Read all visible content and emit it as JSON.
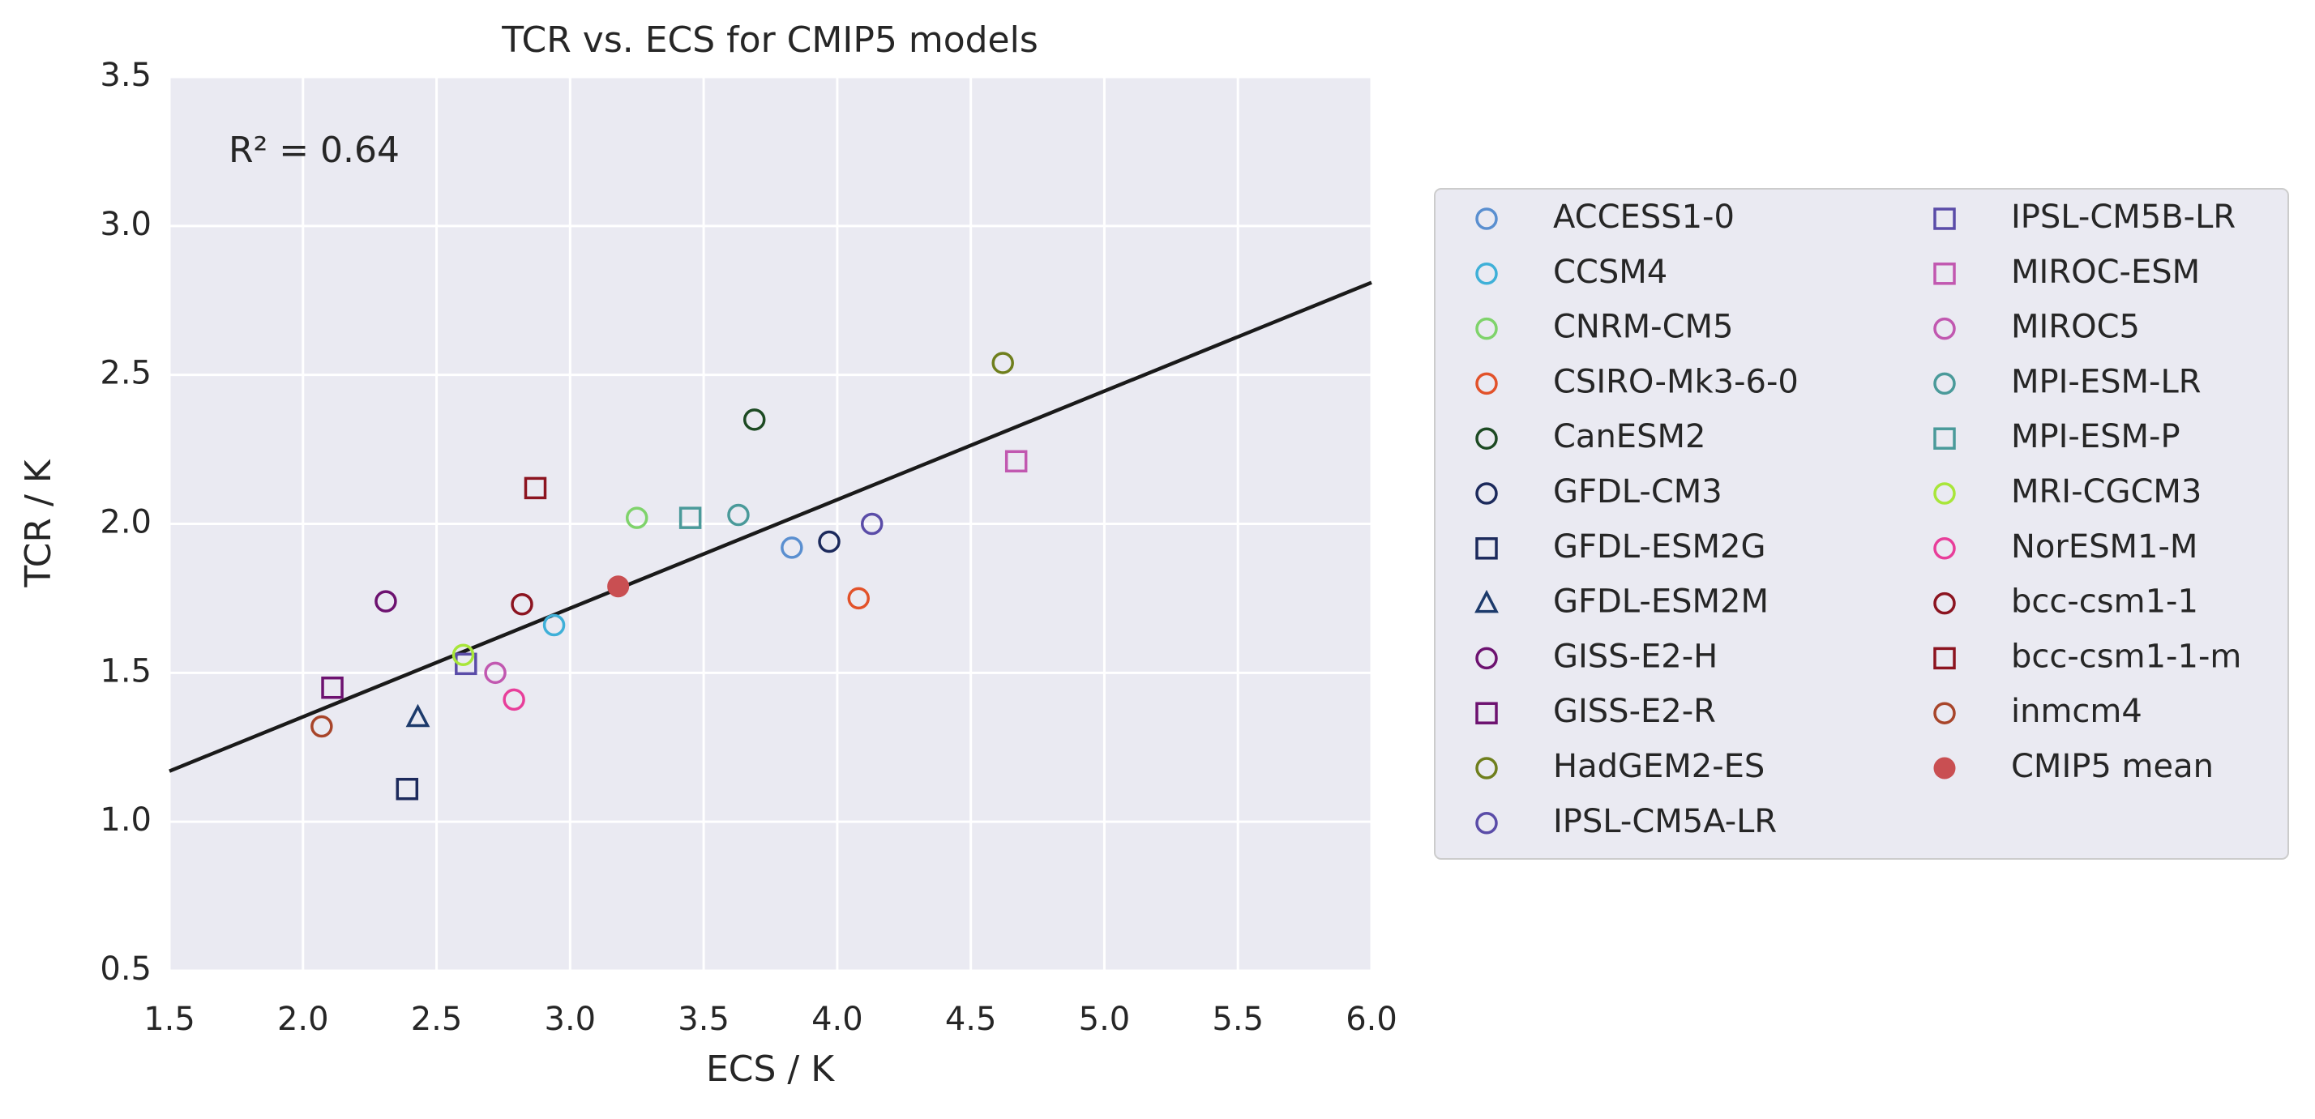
{
  "chart_data": {
    "type": "scatter",
    "title": "TCR vs. ECS for CMIP5 models",
    "x_label": "ECS / K",
    "y_label": "TCR / K",
    "annotation": "R² = 0.64",
    "xlim": [
      1.5,
      6.0
    ],
    "ylim": [
      0.5,
      3.5
    ],
    "xticks": [
      1.5,
      {
        "value": 2,
        "label": "2.0"
      },
      2.5,
      {
        "value": 3,
        "label": "3.0"
      },
      3.5,
      {
        "value": 4,
        "label": "4.0"
      },
      4.5,
      {
        "value": 5,
        "label": "5.0"
      },
      5.5,
      {
        "value": 6,
        "label": "6.0"
      }
    ],
    "yticks": [
      0.5,
      {
        "value": 1,
        "label": "1.0"
      },
      1.5,
      {
        "value": 2,
        "label": "2.0"
      },
      2.5,
      {
        "value": 3,
        "label": "3.0"
      },
      3.5
    ],
    "grid": true,
    "legend": "outside right",
    "regression_line": {
      "color": "#1a1a1a",
      "x": [
        1.5,
        6.0
      ],
      "values": [
        1.17,
        2.81
      ]
    },
    "series": [
      {
        "name": "ACCESS1-0",
        "color": "#5a8fd0",
        "marker": "circle",
        "x": [
          3.83
        ],
        "values": [
          1.92
        ]
      },
      {
        "name": "CCSM4",
        "color": "#3fb0d8",
        "marker": "circle",
        "x": [
          2.94
        ],
        "values": [
          1.66
        ]
      },
      {
        "name": "CNRM-CM5",
        "color": "#7fd36b",
        "marker": "circle",
        "x": [
          3.25
        ],
        "values": [
          2.02
        ]
      },
      {
        "name": "CSIRO-Mk3-6-0",
        "color": "#e2522a",
        "marker": "circle",
        "x": [
          4.08
        ],
        "values": [
          1.75
        ]
      },
      {
        "name": "CanESM2",
        "color": "#1d4a23",
        "marker": "circle",
        "x": [
          3.69
        ],
        "values": [
          2.35
        ]
      },
      {
        "name": "GFDL-CM3",
        "color": "#1c2a5c",
        "marker": "circle",
        "x": [
          3.97
        ],
        "values": [
          1.94
        ]
      },
      {
        "name": "GFDL-ESM2G",
        "color": "#1c2a5c",
        "marker": "square",
        "x": [
          2.39
        ],
        "values": [
          1.11
        ]
      },
      {
        "name": "GFDL-ESM2M",
        "color": "#1c3a6b",
        "marker": "triangle",
        "x": [
          2.43
        ],
        "values": [
          1.35
        ]
      },
      {
        "name": "GISS-E2-H",
        "color": "#6d1270",
        "marker": "circle",
        "x": [
          2.31
        ],
        "values": [
          1.74
        ]
      },
      {
        "name": "GISS-E2-R",
        "color": "#6d1270",
        "marker": "square",
        "x": [
          2.11
        ],
        "values": [
          1.45
        ]
      },
      {
        "name": "HadGEM2-ES",
        "color": "#6f7f1d",
        "marker": "circle",
        "x": [
          4.62
        ],
        "values": [
          2.54
        ]
      },
      {
        "name": "IPSL-CM5A-LR",
        "color": "#5a4ca8",
        "marker": "circle",
        "x": [
          4.13
        ],
        "values": [
          2.0
        ]
      },
      {
        "name": "IPSL-CM5B-LR",
        "color": "#5a4ca8",
        "marker": "square",
        "x": [
          2.61
        ],
        "values": [
          1.53
        ]
      },
      {
        "name": "MIROC-ESM",
        "color": "#c158b0",
        "marker": "square",
        "x": [
          4.67
        ],
        "values": [
          2.21
        ]
      },
      {
        "name": "MIROC5",
        "color": "#c158b0",
        "marker": "circle",
        "x": [
          2.72
        ],
        "values": [
          1.5
        ]
      },
      {
        "name": "MPI-ESM-LR",
        "color": "#4a9a9a",
        "marker": "circle",
        "x": [
          3.63
        ],
        "values": [
          2.03
        ]
      },
      {
        "name": "MPI-ESM-P",
        "color": "#4a9a9a",
        "marker": "square",
        "x": [
          3.45
        ],
        "values": [
          2.02
        ]
      },
      {
        "name": "MRI-CGCM3",
        "color": "#a8e63a",
        "marker": "circle",
        "x": [
          2.6
        ],
        "values": [
          1.56
        ]
      },
      {
        "name": "NorESM1-M",
        "color": "#e83e9a",
        "marker": "circle",
        "x": [
          2.79
        ],
        "values": [
          1.41
        ]
      },
      {
        "name": "bcc-csm1-1",
        "color": "#8c1420",
        "marker": "circle",
        "x": [
          2.82
        ],
        "values": [
          1.73
        ]
      },
      {
        "name": "bcc-csm1-1-m",
        "color": "#8c1420",
        "marker": "square",
        "x": [
          2.87
        ],
        "values": [
          2.12
        ]
      },
      {
        "name": "inmcm4",
        "color": "#a8452a",
        "marker": "circle",
        "x": [
          2.07
        ],
        "values": [
          1.32
        ]
      },
      {
        "name": "CMIP5 mean",
        "color": "#c94f52",
        "marker": "filled-circle",
        "x": [
          3.18
        ],
        "values": [
          1.79
        ]
      }
    ]
  }
}
